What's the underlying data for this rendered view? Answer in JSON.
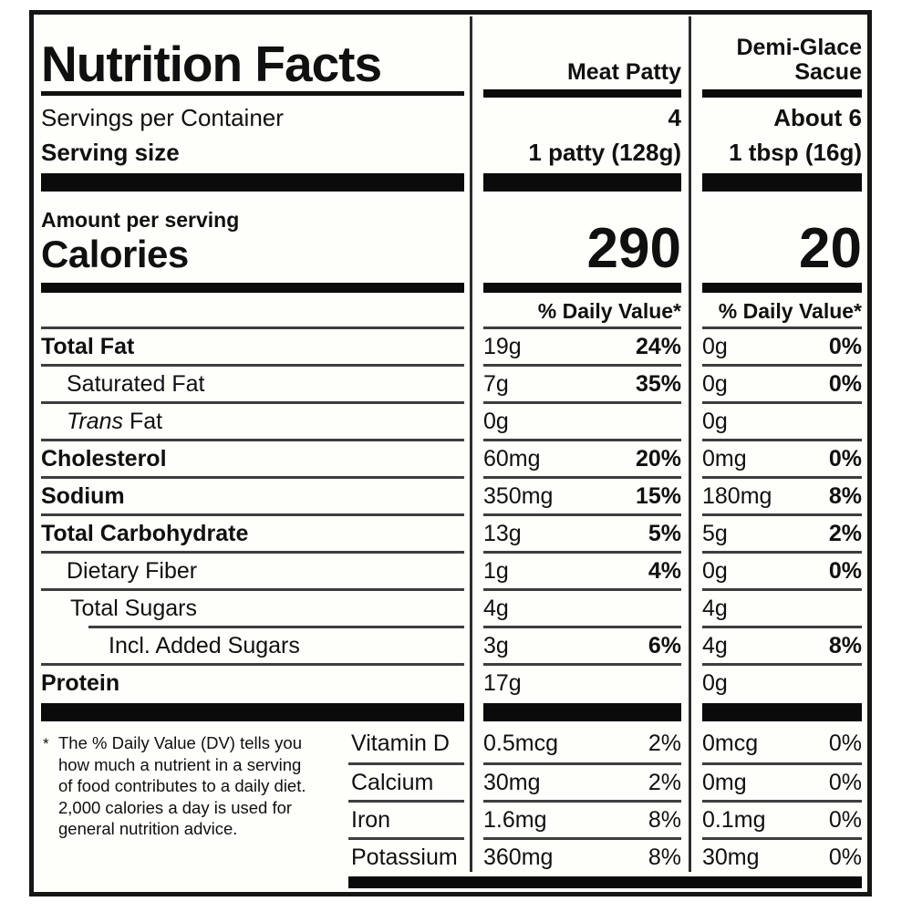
{
  "header": {
    "title": "Nutrition Facts",
    "column1_name": "Meat Patty",
    "column2_name_line1": "Demi-Glace",
    "column2_name_line2": "Sacue"
  },
  "serving": {
    "servings_label": "Servings per Container",
    "servings_values": [
      "4",
      "About 6"
    ],
    "size_label": "Serving size",
    "size_values": [
      "1 patty (128g)",
      "1 tbsp (16g)"
    ]
  },
  "calories": {
    "amount_label": "Amount per serving",
    "label": "Calories",
    "values": [
      "290",
      "20"
    ]
  },
  "daily_value_header": "% Daily Value*",
  "nutrients": [
    {
      "label": "Total Fat",
      "c1_amount": "19g",
      "c1_dv": "24%",
      "c2_amount": "0g",
      "c2_dv": "0%"
    },
    {
      "label": "Saturated Fat",
      "c1_amount": "7g",
      "c1_dv": "35%",
      "c2_amount": "0g",
      "c2_dv": "0%"
    },
    {
      "label_italic": "Trans",
      "label": " Fat",
      "c1_amount": "0g",
      "c1_dv": "",
      "c2_amount": "0g",
      "c2_dv": ""
    },
    {
      "label": "Cholesterol",
      "c1_amount": "60mg",
      "c1_dv": "20%",
      "c2_amount": "0mg",
      "c2_dv": "0%"
    },
    {
      "label": "Sodium",
      "c1_amount": "350mg",
      "c1_dv": "15%",
      "c2_amount": "180mg",
      "c2_dv": "8%"
    },
    {
      "label": "Total Carbohydrate",
      "c1_amount": "13g",
      "c1_dv": "5%",
      "c2_amount": "5g",
      "c2_dv": "2%"
    },
    {
      "label": "Dietary Fiber",
      "c1_amount": "1g",
      "c1_dv": "4%",
      "c2_amount": "0g",
      "c2_dv": "0%"
    },
    {
      "label": "Total Sugars",
      "c1_amount": "4g",
      "c1_dv": "",
      "c2_amount": "4g",
      "c2_dv": ""
    },
    {
      "label": "Incl. Added Sugars",
      "c1_amount": "3g",
      "c1_dv": "6%",
      "c2_amount": "4g",
      "c2_dv": "8%"
    },
    {
      "label": "Protein",
      "c1_amount": "17g",
      "c1_dv": "",
      "c2_amount": "0g",
      "c2_dv": ""
    }
  ],
  "vitamins": [
    {
      "label": "Vitamin D",
      "c1_amount": "0.5mcg",
      "c1_dv": "2%",
      "c2_amount": "0mcg",
      "c2_dv": "0%"
    },
    {
      "label": "Calcium",
      "c1_amount": "30mg",
      "c1_dv": "2%",
      "c2_amount": "0mg",
      "c2_dv": "0%"
    },
    {
      "label": "Iron",
      "c1_amount": "1.6mg",
      "c1_dv": "8%",
      "c2_amount": "0.1mg",
      "c2_dv": "0%"
    },
    {
      "label": "Potassium",
      "c1_amount": "360mg",
      "c1_dv": "8%",
      "c2_amount": "30mg",
      "c2_dv": "0%"
    }
  ],
  "footnote": {
    "marker": "*",
    "text": "The % Daily Value (DV) tells you how much a nutrient in a serving of food contributes to a daily diet. 2,000 calories a day is used for general nutrition advice."
  }
}
